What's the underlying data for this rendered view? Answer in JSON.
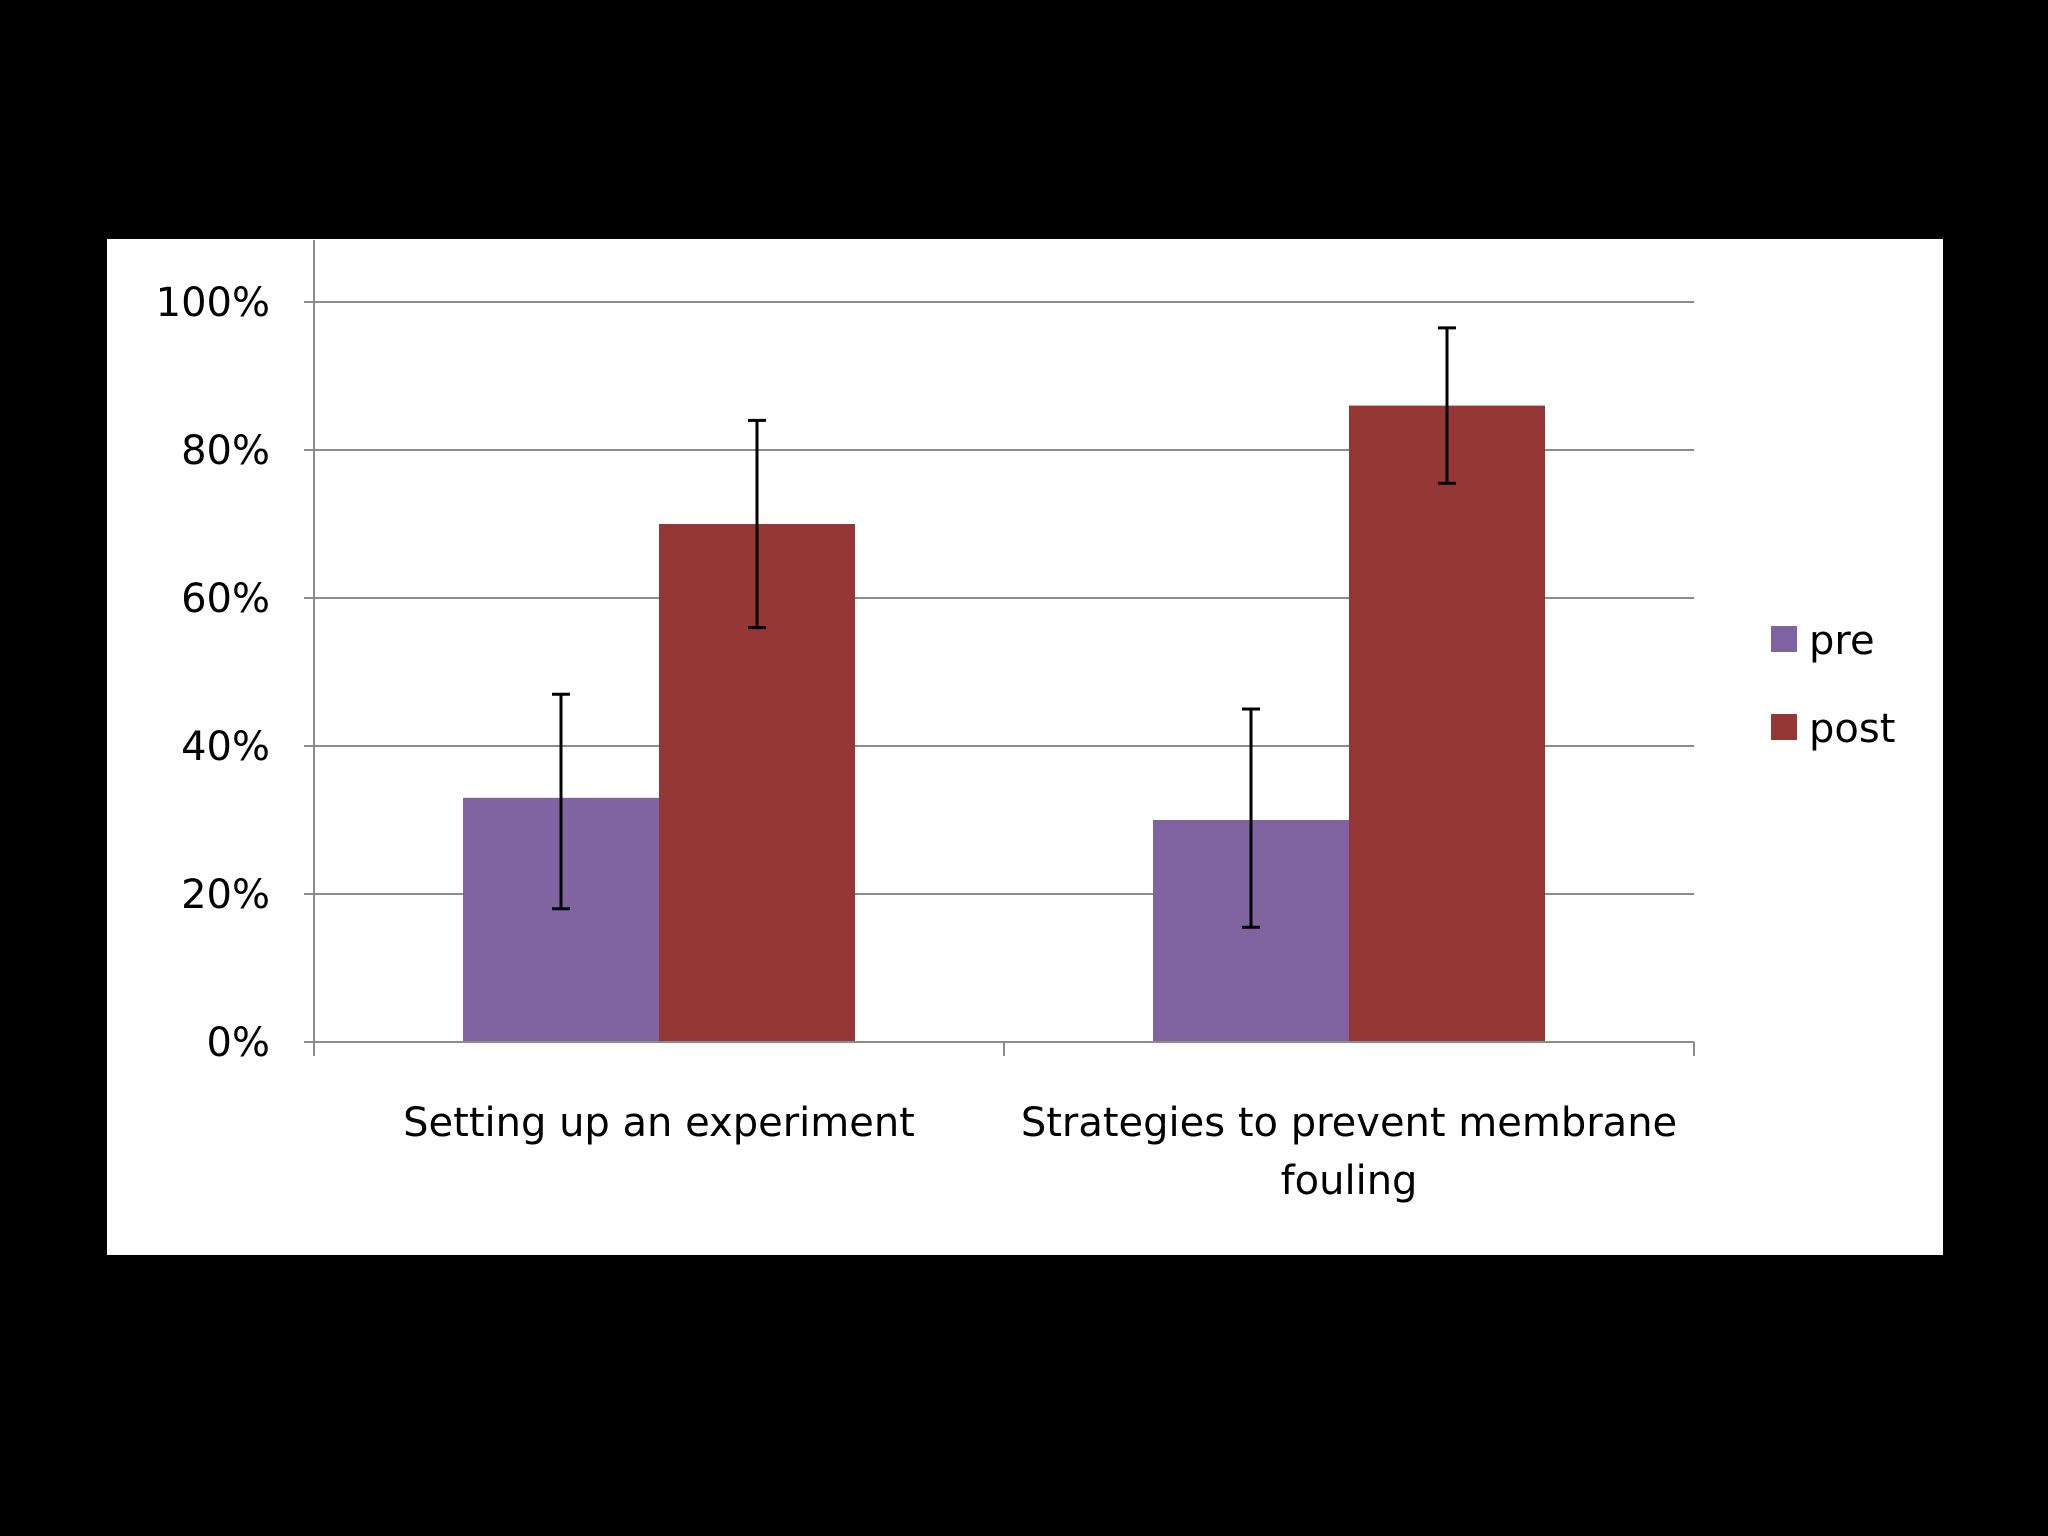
{
  "chart_data": {
    "type": "bar",
    "categories": [
      [
        "Setting up an experiment"
      ],
      [
        "Strategies to prevent membrane",
        "fouling"
      ]
    ],
    "series": [
      {
        "name": "pre",
        "color": "#8064a2",
        "values": [
          0.33,
          0.3
        ],
        "error_low": [
          0.18,
          0.155
        ],
        "error_high": [
          0.47,
          0.45
        ]
      },
      {
        "name": "post",
        "color": "#953735",
        "values": [
          0.7,
          0.86
        ],
        "error_low": [
          0.56,
          0.755
        ],
        "error_high": [
          0.84,
          0.965
        ]
      }
    ],
    "y_ticks": [
      "0%",
      "20%",
      "40%",
      "60%",
      "80%",
      "100%"
    ],
    "ylim": [
      0,
      1
    ],
    "grid": true,
    "legend_position": "right",
    "title": "",
    "xlabel": "",
    "ylabel": ""
  }
}
